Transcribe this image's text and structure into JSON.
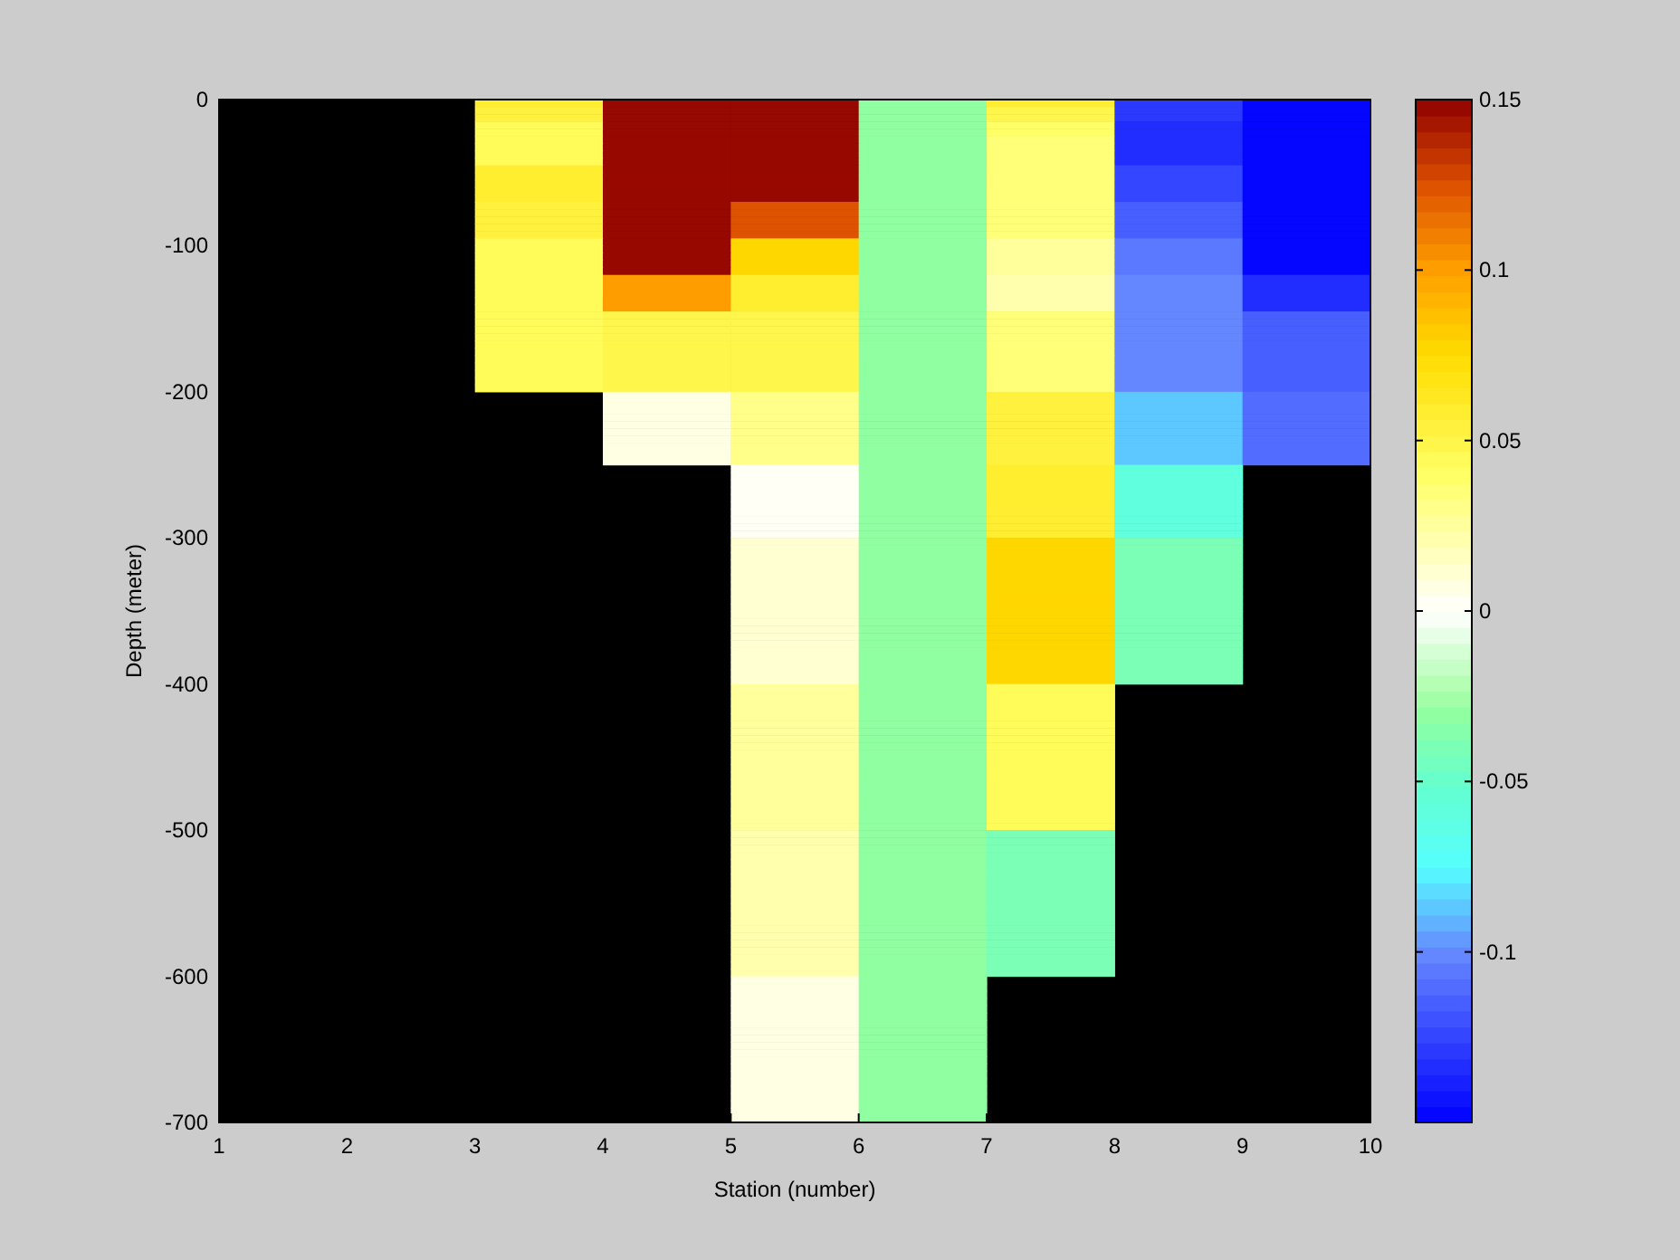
{
  "chart_data": {
    "type": "heatmap",
    "xlabel": "Station (number)",
    "ylabel": "Depth (meter)",
    "xlim": [
      1,
      10
    ],
    "ylim": [
      -700,
      0
    ],
    "xticks": [
      1,
      2,
      3,
      4,
      5,
      6,
      7,
      8,
      9,
      10
    ],
    "yticks": [
      -700,
      -600,
      -500,
      -400,
      -300,
      -200,
      -100,
      0
    ],
    "clim": [
      -0.15,
      0.15
    ],
    "cticks": [
      -0.1,
      -0.05,
      0,
      0.05,
      0.1,
      0.15
    ],
    "cells": [
      [
        null,
        null,
        0.06,
        0.15,
        0.15,
        -0.03,
        0.06,
        -0.13,
        -0.15
      ],
      [
        null,
        null,
        0.055,
        0.15,
        0.15,
        -0.03,
        0.05,
        -0.13,
        -0.15
      ],
      [
        null,
        null,
        0.055,
        0.15,
        0.15,
        -0.03,
        0.05,
        -0.13,
        -0.15
      ],
      [
        null,
        null,
        0.045,
        0.15,
        0.15,
        -0.03,
        0.04,
        -0.135,
        -0.15
      ],
      [
        null,
        null,
        0.045,
        0.15,
        0.15,
        -0.03,
        0.04,
        -0.135,
        -0.15
      ],
      [
        null,
        null,
        0.045,
        0.15,
        0.15,
        -0.03,
        0.035,
        -0.135,
        -0.15
      ],
      [
        null,
        null,
        0.045,
        0.15,
        0.15,
        -0.03,
        0.035,
        -0.135,
        -0.15
      ],
      [
        null,
        null,
        0.045,
        0.15,
        0.15,
        -0.03,
        0.035,
        -0.135,
        -0.15
      ],
      [
        null,
        null,
        0.045,
        0.15,
        0.15,
        -0.03,
        0.035,
        -0.135,
        -0.15
      ],
      [
        null,
        null,
        0.06,
        0.15,
        0.15,
        -0.03,
        0.035,
        -0.125,
        -0.15
      ],
      [
        null,
        null,
        0.06,
        0.15,
        0.15,
        -0.03,
        0.035,
        -0.125,
        -0.15
      ],
      [
        null,
        null,
        0.06,
        0.15,
        0.15,
        -0.03,
        0.035,
        -0.125,
        -0.15
      ],
      [
        null,
        null,
        0.06,
        0.15,
        0.15,
        -0.03,
        0.035,
        -0.125,
        -0.15
      ],
      [
        null,
        null,
        0.06,
        0.15,
        0.15,
        -0.03,
        0.035,
        -0.125,
        -0.15
      ],
      [
        null,
        null,
        0.055,
        0.15,
        0.125,
        -0.03,
        0.035,
        -0.115,
        -0.15
      ],
      [
        null,
        null,
        0.055,
        0.15,
        0.125,
        -0.03,
        0.035,
        -0.115,
        -0.15
      ],
      [
        null,
        null,
        0.055,
        0.15,
        0.125,
        -0.03,
        0.035,
        -0.115,
        -0.15
      ],
      [
        null,
        null,
        0.055,
        0.15,
        0.125,
        -0.03,
        0.035,
        -0.115,
        -0.15
      ],
      [
        null,
        null,
        0.055,
        0.15,
        0.125,
        -0.03,
        0.035,
        -0.115,
        -0.15
      ],
      [
        null,
        null,
        0.045,
        0.15,
        0.075,
        -0.03,
        0.025,
        -0.105,
        -0.15
      ],
      [
        null,
        null,
        0.045,
        0.15,
        0.075,
        -0.03,
        0.025,
        -0.105,
        -0.15
      ],
      [
        null,
        null,
        0.045,
        0.15,
        0.075,
        -0.03,
        0.025,
        -0.105,
        -0.15
      ],
      [
        null,
        null,
        0.045,
        0.15,
        0.075,
        -0.03,
        0.025,
        -0.105,
        -0.15
      ],
      [
        null,
        null,
        0.045,
        0.15,
        0.075,
        -0.03,
        0.025,
        -0.105,
        -0.15
      ],
      [
        null,
        null,
        0.045,
        0.1,
        0.06,
        -0.03,
        0.02,
        -0.1,
        -0.135
      ],
      [
        null,
        null,
        0.045,
        0.1,
        0.06,
        -0.03,
        0.02,
        -0.1,
        -0.135
      ],
      [
        null,
        null,
        0.045,
        0.1,
        0.06,
        -0.03,
        0.02,
        -0.1,
        -0.135
      ],
      [
        null,
        null,
        0.045,
        0.1,
        0.06,
        -0.03,
        0.02,
        -0.1,
        -0.135
      ],
      [
        null,
        null,
        0.045,
        0.1,
        0.06,
        -0.03,
        0.02,
        -0.1,
        -0.135
      ],
      [
        null,
        null,
        0.045,
        0.05,
        0.05,
        -0.03,
        0.035,
        -0.1,
        -0.115
      ],
      [
        null,
        null,
        0.045,
        0.05,
        0.05,
        -0.03,
        0.035,
        -0.1,
        -0.115
      ],
      [
        null,
        null,
        0.045,
        0.05,
        0.05,
        -0.03,
        0.035,
        -0.1,
        -0.115
      ],
      [
        null,
        null,
        0.045,
        0.05,
        0.05,
        -0.03,
        0.035,
        -0.1,
        -0.115
      ],
      [
        null,
        null,
        0.045,
        0.05,
        0.05,
        -0.03,
        0.035,
        -0.1,
        -0.115
      ],
      [
        null,
        null,
        0.045,
        0.05,
        0.05,
        -0.03,
        0.035,
        -0.1,
        -0.115
      ],
      [
        null,
        null,
        0.045,
        0.05,
        0.05,
        -0.03,
        0.035,
        -0.1,
        -0.115
      ],
      [
        null,
        null,
        0.045,
        0.05,
        0.05,
        -0.03,
        0.035,
        -0.1,
        -0.115
      ],
      [
        null,
        null,
        0.045,
        0.05,
        0.05,
        -0.03,
        0.035,
        -0.1,
        -0.115
      ],
      [
        null,
        null,
        0.045,
        0.05,
        0.05,
        -0.03,
        0.035,
        -0.1,
        -0.115
      ],
      [
        null,
        null,
        0.045,
        0.05,
        0.05,
        -0.03,
        0.035,
        -0.1,
        -0.115
      ],
      [
        null,
        null,
        null,
        0.005,
        0.03,
        -0.03,
        0.055,
        -0.085,
        -0.11
      ],
      [
        null,
        null,
        null,
        0.005,
        0.03,
        -0.03,
        0.055,
        -0.085,
        -0.11
      ],
      [
        null,
        null,
        null,
        0.005,
        0.03,
        -0.03,
        0.055,
        -0.085,
        -0.11
      ],
      [
        null,
        null,
        null,
        0.005,
        0.03,
        -0.03,
        0.055,
        -0.085,
        -0.11
      ],
      [
        null,
        null,
        null,
        0.005,
        0.03,
        -0.03,
        0.055,
        -0.085,
        -0.11
      ],
      [
        null,
        null,
        null,
        0.005,
        0.03,
        -0.03,
        0.055,
        -0.085,
        -0.11
      ],
      [
        null,
        null,
        null,
        0.005,
        0.03,
        -0.03,
        0.055,
        -0.085,
        -0.11
      ],
      [
        null,
        null,
        null,
        0.005,
        0.03,
        -0.03,
        0.055,
        -0.085,
        -0.11
      ],
      [
        null,
        null,
        null,
        0.005,
        0.03,
        -0.03,
        0.055,
        -0.085,
        -0.11
      ],
      [
        null,
        null,
        null,
        0.005,
        0.03,
        -0.03,
        0.055,
        -0.085,
        -0.11
      ],
      [
        null,
        null,
        null,
        null,
        0.003,
        -0.03,
        0.06,
        -0.06,
        null
      ],
      [
        null,
        null,
        null,
        null,
        0.003,
        -0.03,
        0.06,
        -0.06,
        null
      ],
      [
        null,
        null,
        null,
        null,
        0.003,
        -0.03,
        0.06,
        -0.06,
        null
      ],
      [
        null,
        null,
        null,
        null,
        0.003,
        -0.03,
        0.06,
        -0.06,
        null
      ],
      [
        null,
        null,
        null,
        null,
        0.003,
        -0.03,
        0.06,
        -0.06,
        null
      ],
      [
        null,
        null,
        null,
        null,
        0.003,
        -0.03,
        0.06,
        -0.06,
        null
      ],
      [
        null,
        null,
        null,
        null,
        0.003,
        -0.03,
        0.06,
        -0.06,
        null
      ],
      [
        null,
        null,
        null,
        null,
        0.003,
        -0.03,
        0.06,
        -0.06,
        null
      ],
      [
        null,
        null,
        null,
        null,
        0.003,
        -0.03,
        0.06,
        -0.06,
        null
      ],
      [
        null,
        null,
        null,
        null,
        0.003,
        -0.03,
        0.06,
        -0.06,
        null
      ],
      [
        null,
        null,
        null,
        null,
        0.01,
        -0.03,
        0.075,
        -0.04,
        null
      ],
      [
        null,
        null,
        null,
        null,
        0.01,
        -0.03,
        0.075,
        -0.04,
        null
      ],
      [
        null,
        null,
        null,
        null,
        0.01,
        -0.03,
        0.075,
        -0.04,
        null
      ],
      [
        null,
        null,
        null,
        null,
        0.01,
        -0.03,
        0.075,
        -0.04,
        null
      ],
      [
        null,
        null,
        null,
        null,
        0.01,
        -0.03,
        0.075,
        -0.04,
        null
      ],
      [
        null,
        null,
        null,
        null,
        0.01,
        -0.03,
        0.075,
        -0.04,
        null
      ],
      [
        null,
        null,
        null,
        null,
        0.01,
        -0.03,
        0.075,
        -0.04,
        null
      ],
      [
        null,
        null,
        null,
        null,
        0.01,
        -0.03,
        0.075,
        -0.04,
        null
      ],
      [
        null,
        null,
        null,
        null,
        0.01,
        -0.03,
        0.075,
        -0.04,
        null
      ],
      [
        null,
        null,
        null,
        null,
        0.01,
        -0.03,
        0.075,
        -0.04,
        null
      ],
      [
        null,
        null,
        null,
        null,
        0.01,
        -0.03,
        0.075,
        -0.04,
        null
      ],
      [
        null,
        null,
        null,
        null,
        0.01,
        -0.03,
        0.075,
        -0.04,
        null
      ],
      [
        null,
        null,
        null,
        null,
        0.01,
        -0.03,
        0.075,
        -0.04,
        null
      ],
      [
        null,
        null,
        null,
        null,
        0.01,
        -0.03,
        0.075,
        -0.04,
        null
      ],
      [
        null,
        null,
        null,
        null,
        0.01,
        -0.03,
        0.075,
        -0.04,
        null
      ],
      [
        null,
        null,
        null,
        null,
        0.01,
        -0.03,
        0.075,
        -0.04,
        null
      ],
      [
        null,
        null,
        null,
        null,
        0.01,
        -0.03,
        0.075,
        -0.04,
        null
      ],
      [
        null,
        null,
        null,
        null,
        0.01,
        -0.03,
        0.075,
        -0.04,
        null
      ],
      [
        null,
        null,
        null,
        null,
        0.01,
        -0.03,
        0.075,
        -0.04,
        null
      ],
      [
        null,
        null,
        null,
        null,
        0.01,
        -0.03,
        0.075,
        -0.04,
        null
      ],
      [
        null,
        null,
        null,
        null,
        0.025,
        -0.03,
        0.045,
        null,
        null
      ],
      [
        null,
        null,
        null,
        null,
        0.025,
        -0.03,
        0.045,
        null,
        null
      ],
      [
        null,
        null,
        null,
        null,
        0.025,
        -0.03,
        0.045,
        null,
        null
      ],
      [
        null,
        null,
        null,
        null,
        0.025,
        -0.03,
        0.045,
        null,
        null
      ],
      [
        null,
        null,
        null,
        null,
        0.025,
        -0.03,
        0.045,
        null,
        null
      ],
      [
        null,
        null,
        null,
        null,
        0.025,
        -0.03,
        0.045,
        null,
        null
      ],
      [
        null,
        null,
        null,
        null,
        0.025,
        -0.03,
        0.045,
        null,
        null
      ],
      [
        null,
        null,
        null,
        null,
        0.025,
        -0.03,
        0.045,
        null,
        null
      ],
      [
        null,
        null,
        null,
        null,
        0.025,
        -0.03,
        0.045,
        null,
        null
      ],
      [
        null,
        null,
        null,
        null,
        0.025,
        -0.03,
        0.045,
        null,
        null
      ],
      [
        null,
        null,
        null,
        null,
        0.025,
        -0.03,
        0.045,
        null,
        null
      ],
      [
        null,
        null,
        null,
        null,
        0.025,
        -0.03,
        0.045,
        null,
        null
      ],
      [
        null,
        null,
        null,
        null,
        0.025,
        -0.03,
        0.045,
        null,
        null
      ],
      [
        null,
        null,
        null,
        null,
        0.025,
        -0.03,
        0.045,
        null,
        null
      ],
      [
        null,
        null,
        null,
        null,
        0.025,
        -0.03,
        0.045,
        null,
        null
      ],
      [
        null,
        null,
        null,
        null,
        0.025,
        -0.03,
        0.045,
        null,
        null
      ],
      [
        null,
        null,
        null,
        null,
        0.025,
        -0.03,
        0.045,
        null,
        null
      ],
      [
        null,
        null,
        null,
        null,
        0.025,
        -0.03,
        0.045,
        null,
        null
      ],
      [
        null,
        null,
        null,
        null,
        0.025,
        -0.03,
        0.045,
        null,
        null
      ],
      [
        null,
        null,
        null,
        null,
        0.025,
        -0.03,
        0.045,
        null,
        null
      ],
      [
        null,
        null,
        null,
        null,
        0.02,
        -0.03,
        -0.04,
        null,
        null
      ],
      [
        null,
        null,
        null,
        null,
        0.02,
        -0.03,
        -0.04,
        null,
        null
      ],
      [
        null,
        null,
        null,
        null,
        0.02,
        -0.03,
        -0.04,
        null,
        null
      ],
      [
        null,
        null,
        null,
        null,
        0.02,
        -0.03,
        -0.04,
        null,
        null
      ],
      [
        null,
        null,
        null,
        null,
        0.02,
        -0.03,
        -0.04,
        null,
        null
      ],
      [
        null,
        null,
        null,
        null,
        0.02,
        -0.03,
        -0.04,
        null,
        null
      ],
      [
        null,
        null,
        null,
        null,
        0.02,
        -0.03,
        -0.04,
        null,
        null
      ],
      [
        null,
        null,
        null,
        null,
        0.02,
        -0.03,
        -0.04,
        null,
        null
      ],
      [
        null,
        null,
        null,
        null,
        0.02,
        -0.03,
        -0.04,
        null,
        null
      ],
      [
        null,
        null,
        null,
        null,
        0.02,
        -0.03,
        -0.04,
        null,
        null
      ],
      [
        null,
        null,
        null,
        null,
        0.02,
        -0.03,
        -0.04,
        null,
        null
      ],
      [
        null,
        null,
        null,
        null,
        0.02,
        -0.03,
        -0.04,
        null,
        null
      ],
      [
        null,
        null,
        null,
        null,
        0.02,
        -0.03,
        -0.04,
        null,
        null
      ],
      [
        null,
        null,
        null,
        null,
        0.02,
        -0.03,
        -0.04,
        null,
        null
      ],
      [
        null,
        null,
        null,
        null,
        0.02,
        -0.03,
        -0.04,
        null,
        null
      ],
      [
        null,
        null,
        null,
        null,
        0.02,
        -0.03,
        -0.04,
        null,
        null
      ],
      [
        null,
        null,
        null,
        null,
        0.02,
        -0.03,
        -0.04,
        null,
        null
      ],
      [
        null,
        null,
        null,
        null,
        0.02,
        -0.03,
        -0.04,
        null,
        null
      ],
      [
        null,
        null,
        null,
        null,
        0.02,
        -0.03,
        -0.04,
        null,
        null
      ],
      [
        null,
        null,
        null,
        null,
        0.02,
        -0.03,
        -0.04,
        null,
        null
      ],
      [
        null,
        null,
        null,
        null,
        0.005,
        -0.03,
        null,
        null,
        null
      ],
      [
        null,
        null,
        null,
        null,
        0.005,
        -0.03,
        null,
        null,
        null
      ],
      [
        null,
        null,
        null,
        null,
        0.005,
        -0.03,
        null,
        null,
        null
      ],
      [
        null,
        null,
        null,
        null,
        0.005,
        -0.03,
        null,
        null,
        null
      ],
      [
        null,
        null,
        null,
        null,
        0.005,
        -0.03,
        null,
        null,
        null
      ],
      [
        null,
        null,
        null,
        null,
        0.005,
        -0.03,
        null,
        null,
        null
      ],
      [
        null,
        null,
        null,
        null,
        0.005,
        -0.03,
        null,
        null,
        null
      ],
      [
        null,
        null,
        null,
        null,
        0.005,
        -0.03,
        null,
        null,
        null
      ],
      [
        null,
        null,
        null,
        null,
        0.005,
        -0.03,
        null,
        null,
        null
      ],
      [
        null,
        null,
        null,
        null,
        0.005,
        -0.03,
        null,
        null,
        null
      ],
      [
        null,
        null,
        null,
        null,
        0.005,
        -0.03,
        null,
        null,
        null
      ],
      [
        null,
        null,
        null,
        null,
        0.005,
        -0.03,
        null,
        null,
        null
      ],
      [
        null,
        null,
        null,
        null,
        0.005,
        -0.03,
        null,
        null,
        null
      ],
      [
        null,
        null,
        null,
        null,
        0.005,
        -0.03,
        null,
        null,
        null
      ],
      [
        null,
        null,
        null,
        null,
        0.005,
        -0.03,
        null,
        null,
        null
      ],
      [
        null,
        null,
        null,
        null,
        0.005,
        -0.03,
        null,
        null,
        null
      ],
      [
        null,
        null,
        null,
        null,
        0.005,
        -0.03,
        null,
        null,
        null
      ],
      [
        null,
        null,
        null,
        null,
        0.005,
        -0.03,
        null,
        null,
        null
      ],
      [
        null,
        null,
        null,
        null,
        0.005,
        -0.03,
        null,
        null,
        null
      ],
      [
        null,
        null,
        null,
        null,
        0.005,
        -0.03,
        null,
        null,
        null
      ]
    ]
  }
}
